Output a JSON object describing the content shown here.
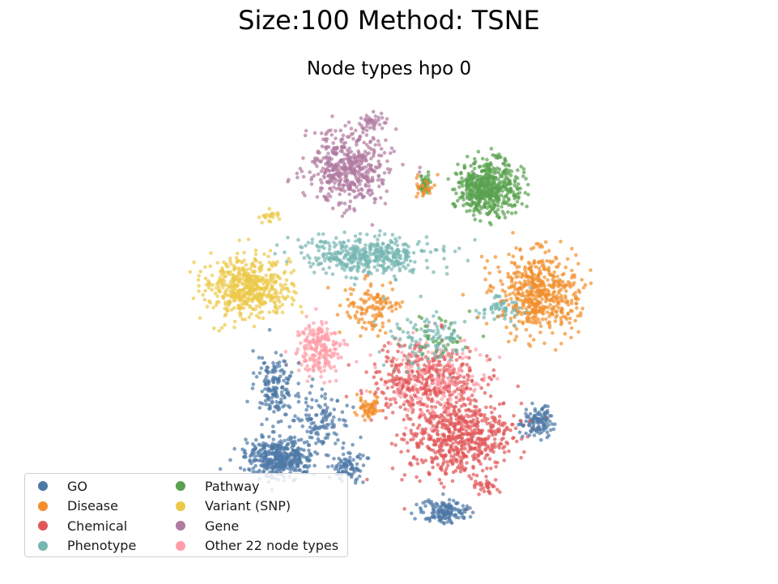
{
  "figure": {
    "suptitle": "Size:100 Method: TSNE"
  },
  "chart_data": {
    "type": "scatter",
    "title": "Node types hpo 0",
    "xlabel": "",
    "ylabel": "",
    "axes_visible": false,
    "legend_placement": "lower-left",
    "legend_columns": 2,
    "series": [
      {
        "name": "GO",
        "color": "#4e79a7",
        "clusters": [
          [
            345,
            565,
            38,
            22,
            420
          ],
          [
            340,
            478,
            22,
            32,
            160
          ],
          [
            550,
            632,
            26,
            14,
            150
          ],
          [
            662,
            520,
            18,
            18,
            120
          ],
          [
            430,
            575,
            20,
            18,
            90
          ],
          [
            395,
            520,
            35,
            30,
            120
          ]
        ]
      },
      {
        "name": "Disease",
        "color": "#f28e2b",
        "clusters": [
          [
            665,
            360,
            45,
            45,
            520
          ],
          [
            460,
            380,
            30,
            30,
            120
          ],
          [
            455,
            505,
            15,
            15,
            60
          ],
          [
            525,
            230,
            10,
            12,
            40
          ]
        ]
      },
      {
        "name": "Chemical",
        "color": "#e15759",
        "clusters": [
          [
            565,
            540,
            60,
            45,
            600
          ],
          [
            525,
            470,
            60,
            40,
            350
          ],
          [
            600,
            600,
            15,
            10,
            30
          ]
        ]
      },
      {
        "name": "Phenotype",
        "color": "#76b7b2",
        "clusters": [
          [
            455,
            315,
            75,
            20,
            420
          ],
          [
            620,
            380,
            25,
            15,
            60
          ],
          [
            530,
            420,
            45,
            35,
            120
          ]
        ]
      },
      {
        "name": "Pathway",
        "color": "#59a14f",
        "clusters": [
          [
            603,
            232,
            35,
            30,
            520
          ],
          [
            525,
            225,
            6,
            12,
            35
          ],
          [
            545,
            420,
            40,
            30,
            40
          ]
        ]
      },
      {
        "name": "Variant (SNP)",
        "color": "#edc948",
        "clusters": [
          [
            305,
            355,
            50,
            32,
            520
          ],
          [
            335,
            268,
            10,
            8,
            20
          ]
        ]
      },
      {
        "name": "Gene",
        "color": "#b07aa1",
        "clusters": [
          [
            430,
            205,
            45,
            40,
            480
          ],
          [
            460,
            150,
            15,
            10,
            40
          ]
        ]
      },
      {
        "name": "Other 22 node types",
        "color": "#ff9da7",
        "clusters": [
          [
            395,
            430,
            25,
            30,
            200
          ],
          [
            535,
            470,
            55,
            45,
            220
          ]
        ]
      }
    ],
    "cluster_format": "[center_x, center_y, spread_x, spread_y, n_points] in embedding units"
  }
}
